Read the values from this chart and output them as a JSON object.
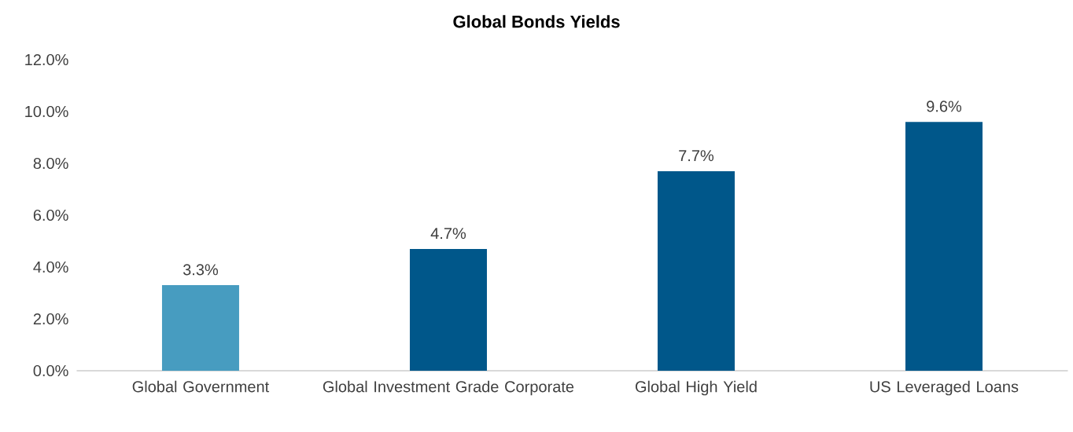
{
  "chart_data": {
    "type": "bar",
    "title": "Global Bonds Yields",
    "categories": [
      "Global Government",
      "Global Investment Grade Corporate",
      "Global High Yield",
      "US Leveraged Loans"
    ],
    "values": [
      3.3,
      4.7,
      7.7,
      9.6
    ],
    "value_labels": [
      "3.3%",
      "4.7%",
      "7.7%",
      "9.6%"
    ],
    "colors": [
      "#479cc0",
      "#00578a",
      "#00578a",
      "#00578a"
    ],
    "ylim": [
      0,
      12
    ],
    "yticks": [
      {
        "value": 0,
        "label": "0.0%"
      },
      {
        "value": 2,
        "label": "2.0%"
      },
      {
        "value": 4,
        "label": "4.0%"
      },
      {
        "value": 6,
        "label": "6.0%"
      },
      {
        "value": 8,
        "label": "8.0%"
      },
      {
        "value": 10,
        "label": "10.0%"
      },
      {
        "value": 12,
        "label": "12.0%"
      }
    ]
  }
}
